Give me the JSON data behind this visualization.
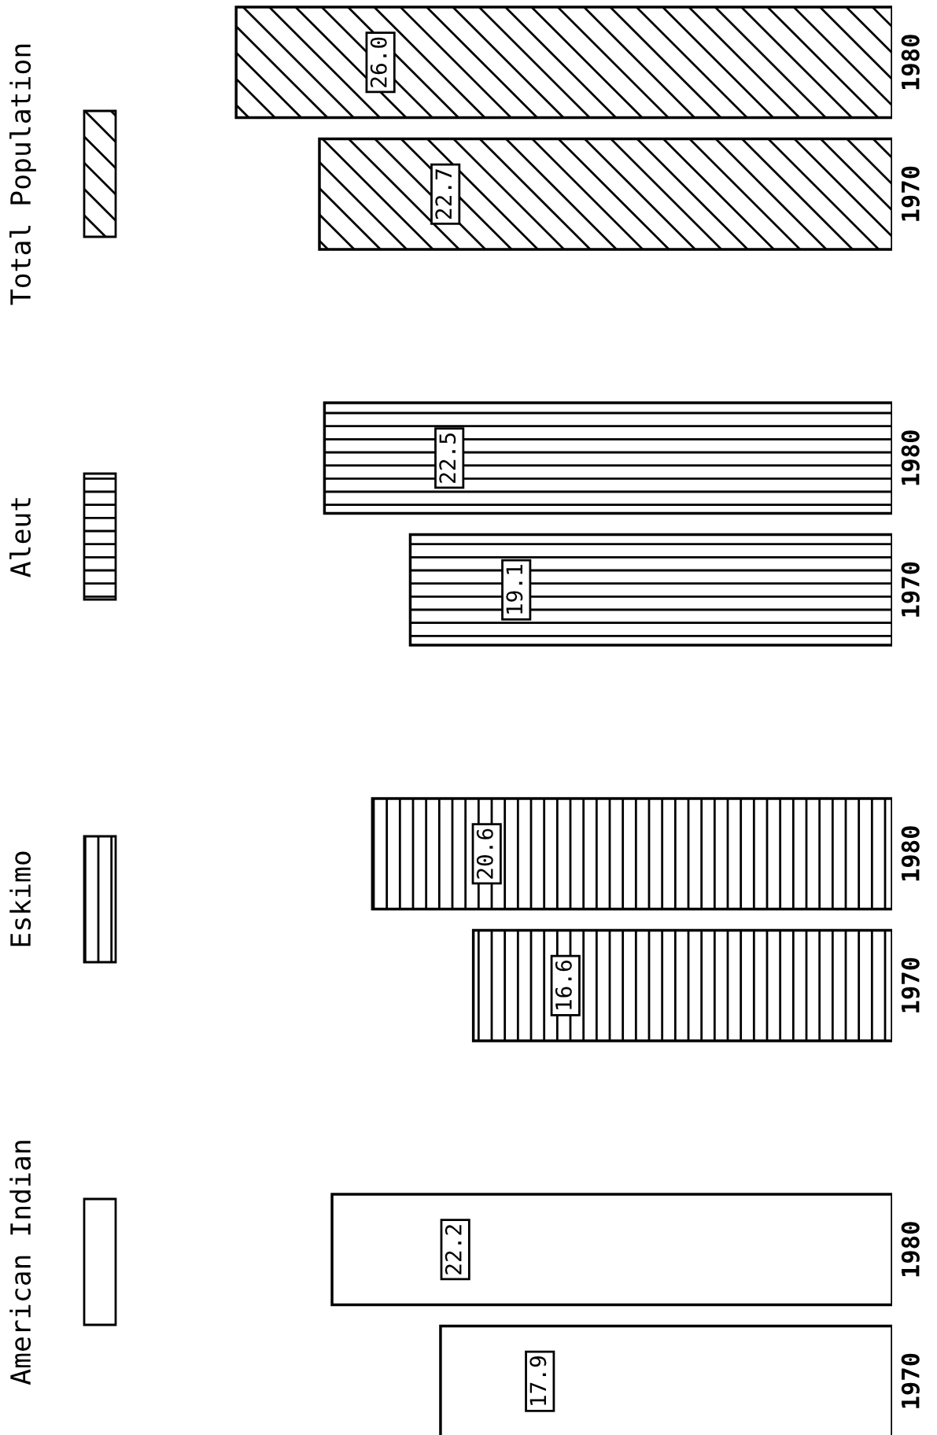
{
  "chart_data": [
    {
      "type": "bar",
      "orientation": "horizontal",
      "legend": "left",
      "grid": false,
      "categories": [
        "1980",
        "1970"
      ],
      "series": [
        {
          "name": "Total Population",
          "color": "#000000",
          "values": [
            26.0,
            22.7
          ],
          "value_labels": [
            "26.0",
            "22.7"
          ]
        }
      ]
    },
    {
      "type": "bar",
      "orientation": "horizontal",
      "legend": "left",
      "grid": false,
      "categories": [
        "1980",
        "1970"
      ],
      "series": [
        {
          "name": "Aleut",
          "color": "#000000",
          "values": [
            22.5,
            19.1
          ],
          "value_labels": [
            "22.5",
            "19.1"
          ]
        }
      ]
    },
    {
      "type": "bar",
      "orientation": "horizontal",
      "legend": "left",
      "grid": false,
      "categories": [
        "1980",
        "1970"
      ],
      "series": [
        {
          "name": "Eskimo",
          "color": "#000000",
          "values": [
            20.6,
            16.6
          ],
          "value_labels": [
            "20.6",
            "16.6"
          ]
        }
      ]
    },
    {
      "type": "bar",
      "orientation": "horizontal",
      "legend": "left",
      "grid": false,
      "categories": [
        "1980",
        "1970"
      ],
      "series": [
        {
          "name": "American Indian",
          "color": "#000000",
          "values": [
            22.2,
            17.9
          ],
          "value_labels": [
            "22.2",
            "17.9"
          ]
        }
      ]
    }
  ]
}
